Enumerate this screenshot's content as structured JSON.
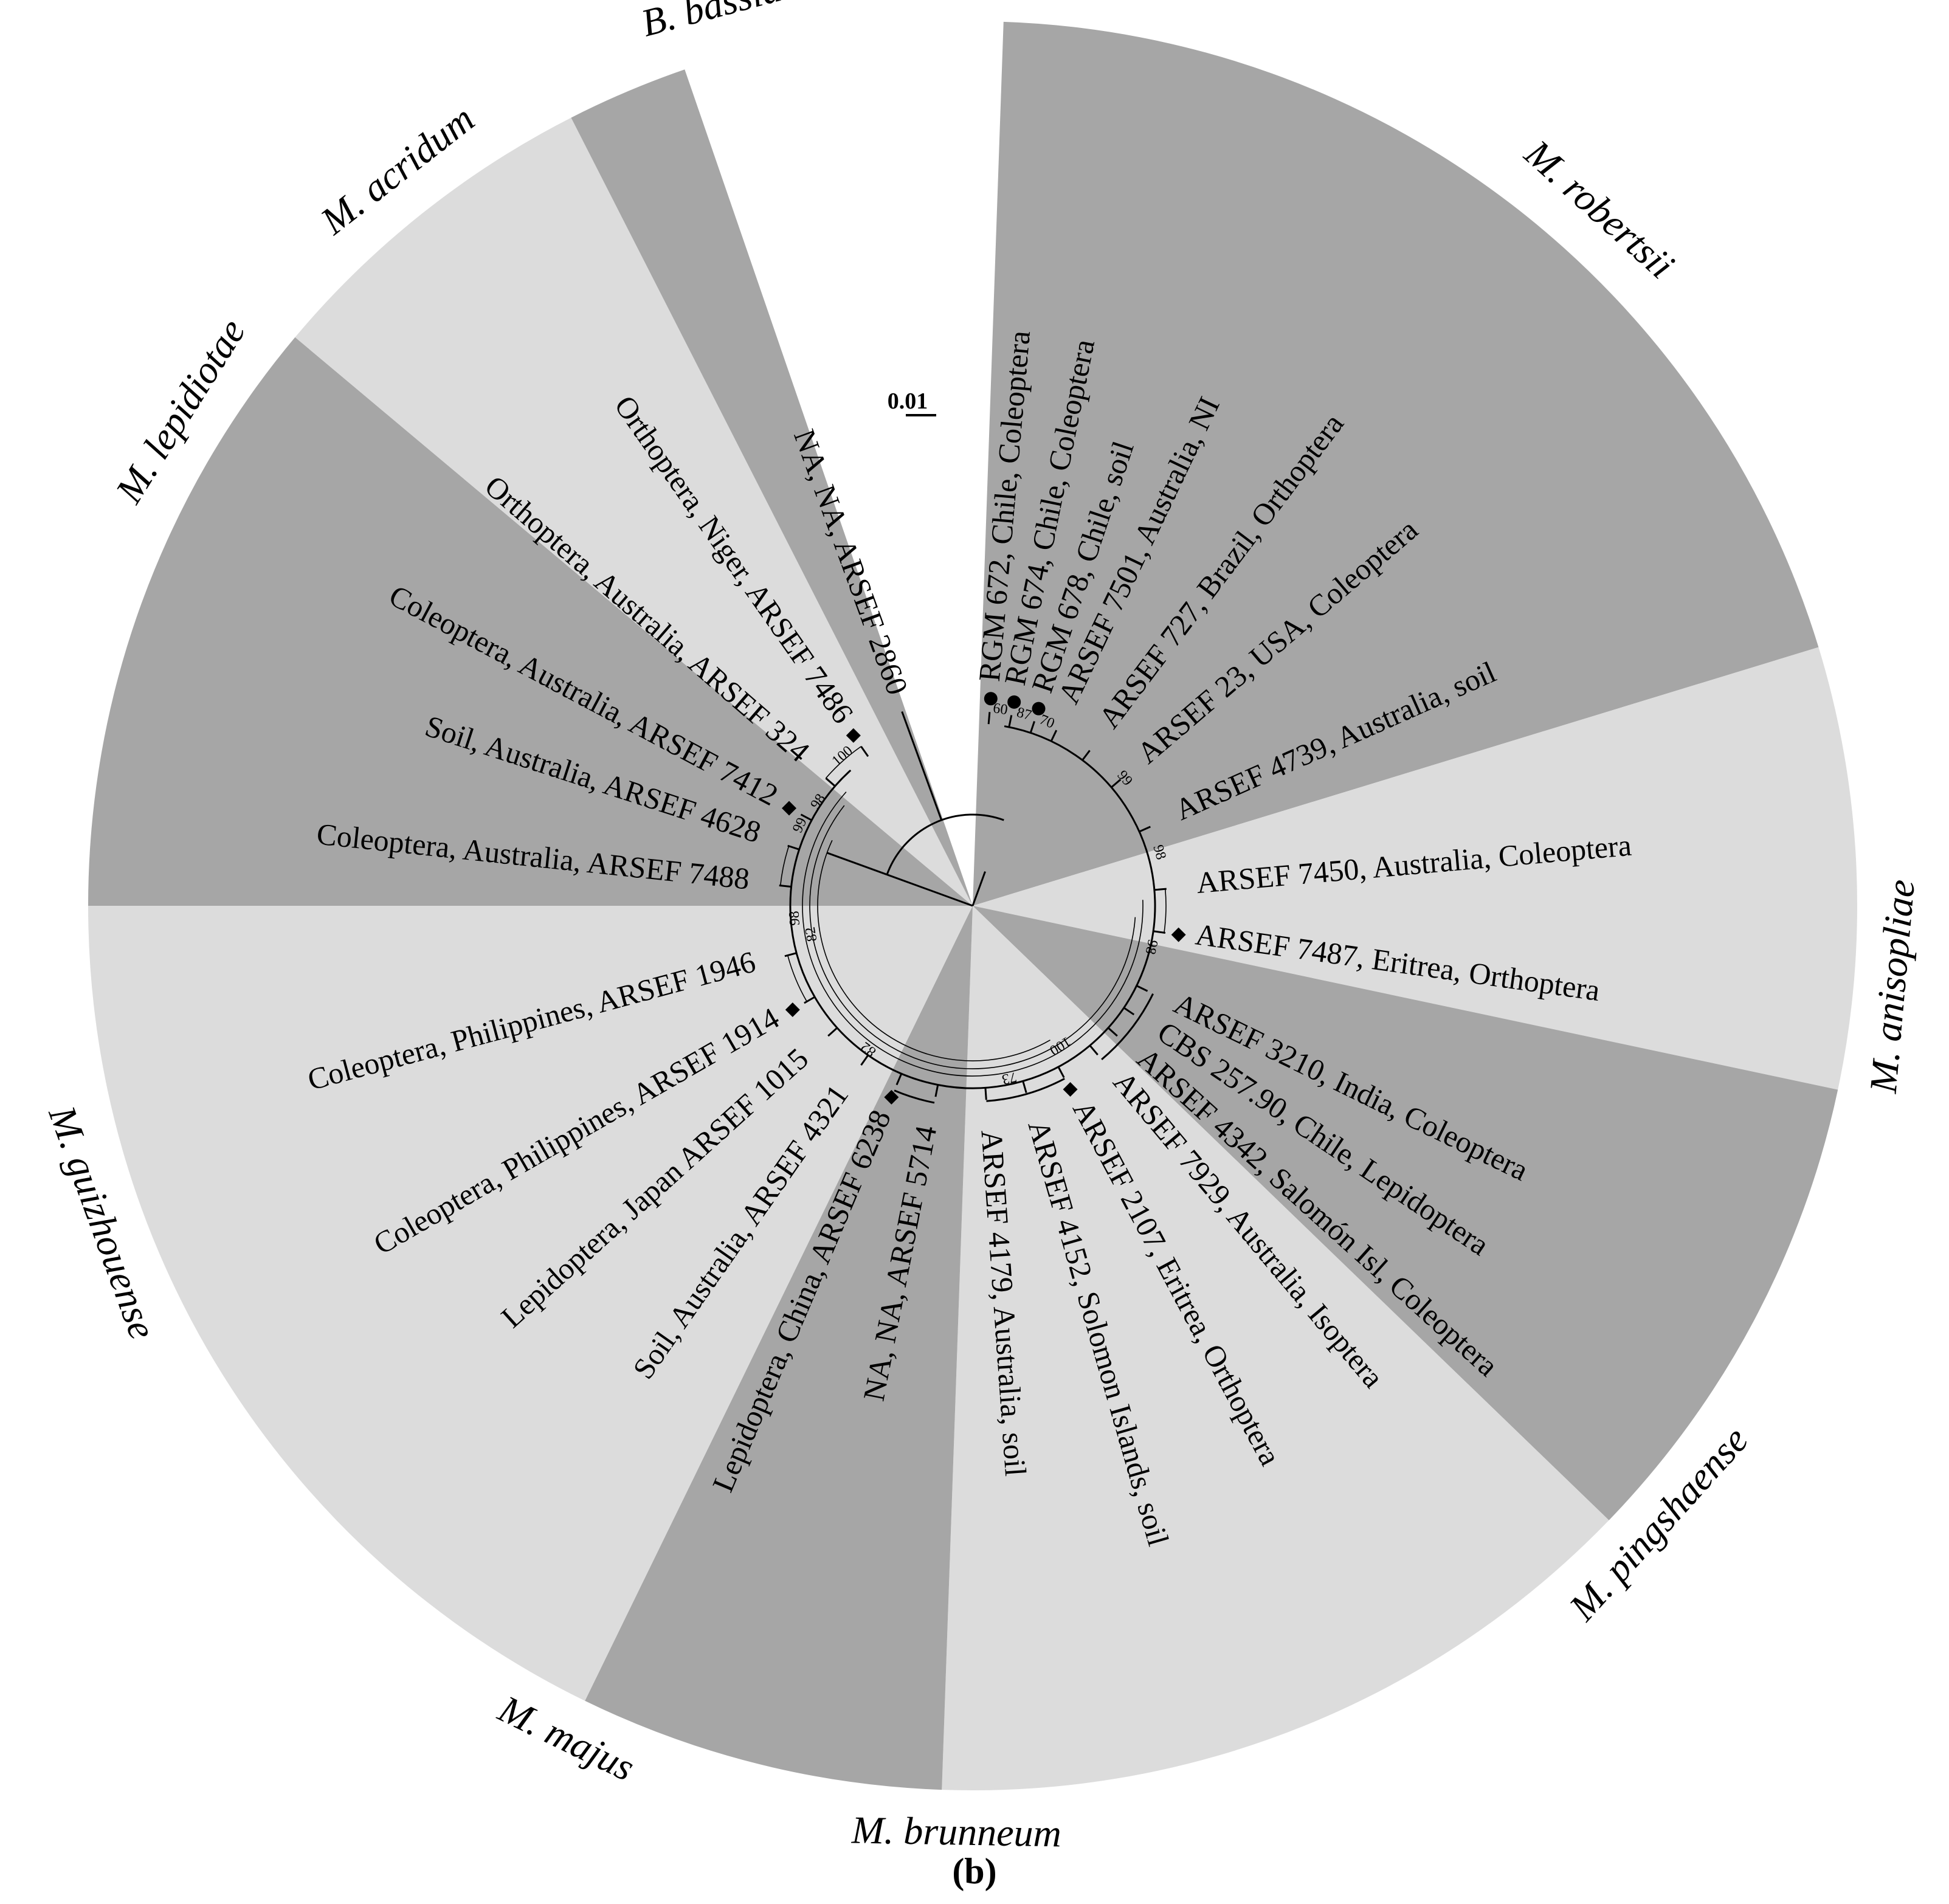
{
  "figure": {
    "panel_label": "(b)",
    "scale_bar": "0.01",
    "colors": {
      "dark_sector": "#a6a6a6",
      "light_sector": "#dcdcdc",
      "background": "#ffffff",
      "ink": "#000000"
    },
    "clades": [
      {
        "name": "M. robertsii",
        "shade": "dark"
      },
      {
        "name": "M. anisopliae",
        "shade": "light"
      },
      {
        "name": "M. pingshaense",
        "shade": "dark"
      },
      {
        "name": "M. brunneum",
        "shade": "light"
      },
      {
        "name": "M. majus",
        "shade": "dark"
      },
      {
        "name": "M. guizhouense",
        "shade": "light"
      },
      {
        "name": "M. lepidiotae",
        "shade": "dark"
      },
      {
        "name": "M. acridum",
        "shade": "light"
      },
      {
        "name": "B. bassiana",
        "shade": "dark"
      }
    ],
    "leaves": [
      {
        "label": "RGM 672, Chile, Coleoptera",
        "marker": "circle"
      },
      {
        "label": "RGM 674, Chile, Coleoptera",
        "marker": "circle"
      },
      {
        "label": "RGM 678, Chile, soil",
        "marker": "circle"
      },
      {
        "label": "ARSEF 7501, Australia, NI",
        "marker": ""
      },
      {
        "label": "ARSEF 727, Brazil, Orthoptera",
        "marker": ""
      },
      {
        "label": "ARSEF 23, USA, Coleoptera",
        "marker": ""
      },
      {
        "label": "ARSEF 4739, Australia, soil",
        "marker": ""
      },
      {
        "label": "ARSEF 7450, Australia, Coleoptera",
        "marker": ""
      },
      {
        "label": "ARSEF 7487, Eritrea, Orthoptera",
        "marker": "diamond"
      },
      {
        "label": "ARSEF 3210, India, Coleoptera",
        "marker": ""
      },
      {
        "label": "CBS 257.90, Chile, Lepidoptera",
        "marker": ""
      },
      {
        "label": "ARSEF 4342, Salomón Isl, Coleoptera",
        "marker": ""
      },
      {
        "label": "ARSEF 7929, Australia, Isoptera",
        "marker": ""
      },
      {
        "label": "ARSEF 2107, Eritrea, Orthoptera",
        "marker": "diamond"
      },
      {
        "label": "ARSEF 4152, Solomon Islands, soil",
        "marker": ""
      },
      {
        "label": "ARSEF 4179, Australia, soil",
        "marker": ""
      },
      {
        "label": "NA, NA, ARSEF 5714",
        "marker": ""
      },
      {
        "label": "Lepidoptera, China, ARSEF 6238",
        "marker": "diamond"
      },
      {
        "label": "Soil, Australia, ARSEF 4321",
        "marker": ""
      },
      {
        "label": "Lepidoptera, Japan ARSEF 1015",
        "marker": ""
      },
      {
        "label": "Coleoptera, Philippines, ARSEF 1914",
        "marker": "diamond"
      },
      {
        "label": "Coleoptera, Philippines,  ARSEF 1946",
        "marker": ""
      },
      {
        "label": "Coleoptera, Australia,  ARSEF 7488",
        "marker": ""
      },
      {
        "label": "Soil, Australia,    ARSEF 4628",
        "marker": ""
      },
      {
        "label": "Coleoptera, Australia, ARSEF 7412",
        "marker": "diamond"
      },
      {
        "label": "Orthoptera, Australia, ARSEF 324",
        "marker": ""
      },
      {
        "label": "Orthoptera, Niger, ARSEF 7486",
        "marker": "diamond"
      },
      {
        "label": "NA, NA, ARSEF 2860",
        "marker": ""
      }
    ],
    "support_values": [
      "60",
      "87",
      "70",
      "99",
      "98",
      "98",
      "100",
      "73",
      "82",
      "98",
      "82",
      "98",
      "99",
      "100"
    ]
  }
}
